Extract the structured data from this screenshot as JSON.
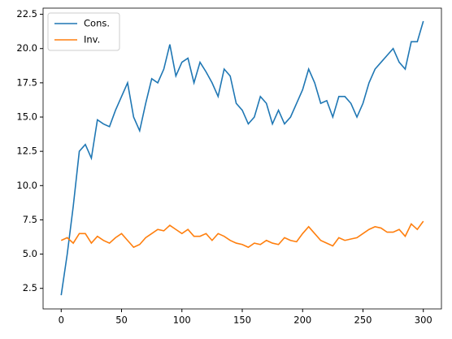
{
  "chart_data": {
    "type": "line",
    "x": [
      0,
      5,
      10,
      15,
      20,
      25,
      30,
      35,
      40,
      45,
      50,
      55,
      60,
      65,
      70,
      75,
      80,
      85,
      90,
      95,
      100,
      105,
      110,
      115,
      120,
      125,
      130,
      135,
      140,
      145,
      150,
      155,
      160,
      165,
      170,
      175,
      180,
      185,
      190,
      195,
      200,
      205,
      210,
      215,
      220,
      225,
      230,
      235,
      240,
      245,
      250,
      255,
      260,
      265,
      270,
      275,
      280,
      285,
      290,
      295,
      300
    ],
    "series": [
      {
        "name": "Cons.",
        "color": "#1f77b4",
        "values": [
          2.0,
          5.0,
          8.5,
          12.5,
          13.0,
          12.0,
          14.8,
          14.5,
          14.3,
          15.5,
          16.5,
          17.5,
          15.0,
          14.0,
          16.0,
          17.8,
          17.5,
          18.5,
          20.3,
          18.0,
          19.0,
          19.3,
          17.5,
          19.0,
          18.3,
          17.5,
          16.5,
          18.5,
          18.0,
          16.0,
          15.5,
          14.5,
          15.0,
          16.5,
          16.0,
          14.5,
          15.5,
          14.5,
          15.0,
          16.0,
          17.0,
          18.5,
          17.5,
          16.0,
          16.2,
          15.0,
          16.5,
          16.5,
          16.0,
          15.0,
          16.0,
          17.5,
          18.5,
          19.0,
          19.5,
          20.0,
          19.0,
          18.5,
          20.5,
          20.5,
          22.0
        ]
      },
      {
        "name": "Inv.",
        "color": "#ff7f0e",
        "values": [
          6.0,
          6.2,
          5.8,
          6.5,
          6.5,
          5.8,
          6.3,
          6.0,
          5.8,
          6.2,
          6.5,
          6.0,
          5.5,
          5.7,
          6.2,
          6.5,
          6.8,
          6.7,
          7.1,
          6.8,
          6.5,
          6.8,
          6.3,
          6.3,
          6.5,
          6.0,
          6.5,
          6.3,
          6.0,
          5.8,
          5.7,
          5.5,
          5.8,
          5.7,
          6.0,
          5.8,
          5.7,
          6.2,
          6.0,
          5.9,
          6.5,
          7.0,
          6.5,
          6.0,
          5.8,
          5.6,
          6.2,
          6.0,
          6.1,
          6.2,
          6.5,
          6.8,
          7.0,
          6.9,
          6.6,
          6.6,
          6.8,
          6.3,
          7.2,
          6.8,
          7.4
        ]
      }
    ],
    "xlim": [
      -15,
      315
    ],
    "xticks": [
      0,
      50,
      100,
      150,
      200,
      250,
      300
    ],
    "ylim": [
      1.0,
      22.95
    ],
    "yticks": [
      2.5,
      {
        "value": 5,
        "label": "5.0"
      },
      7.5,
      {
        "value": 10,
        "label": "10.0"
      },
      12.5,
      {
        "value": 15,
        "label": "15.0"
      },
      17.5,
      {
        "value": 20,
        "label": "20.0"
      },
      22.5
    ],
    "legend": "upper left"
  }
}
